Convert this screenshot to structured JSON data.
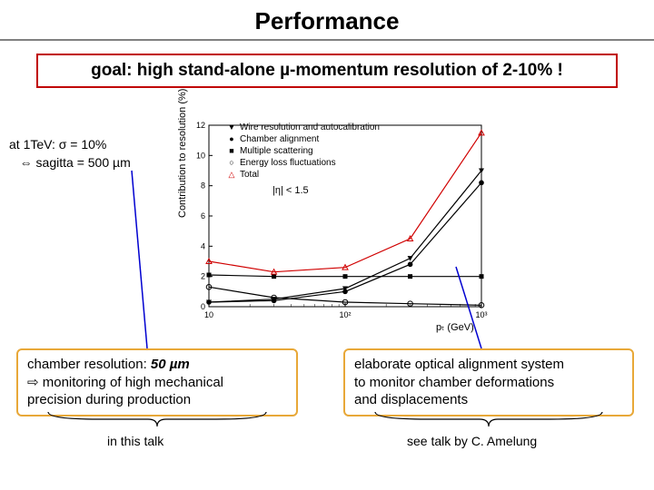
{
  "title": "Performance",
  "goal": {
    "text": "goal: high stand-alone µ-momentum resolution of 2-10% !",
    "border_color": "#c00000"
  },
  "annotation": {
    "line1": "at 1TeV: σ = 10%",
    "line2": "⇔ sagitta = 500 µm"
  },
  "chart": {
    "type": "line",
    "ylabel": "Contribution to resolution (%)",
    "xlabel": "pₜ (GeV)",
    "eta_label": "|η| < 1.5",
    "xlim": [
      10,
      1000
    ],
    "ylim": [
      0,
      12
    ],
    "xscale": "log",
    "ytick_step": 2,
    "xticks": [
      10,
      100,
      1000
    ],
    "xtick_labels": [
      "10",
      "10²",
      "10³"
    ],
    "grid_color": "#cccccc",
    "axis_color": "#000000",
    "legend": [
      {
        "marker": "▼",
        "label": "Wire resolution and autocalibration",
        "color": "#000000"
      },
      {
        "marker": "●",
        "label": "Chamber alignment",
        "color": "#000000"
      },
      {
        "marker": "■",
        "label": "Multiple scattering",
        "color": "#000000"
      },
      {
        "marker": "○",
        "label": "Energy loss fluctuations",
        "color": "#000000"
      },
      {
        "marker": "△",
        "label": "Total",
        "color": "#d00000"
      }
    ],
    "series": {
      "wire": {
        "color": "#000000",
        "marker": "▼",
        "x": [
          10,
          30,
          100,
          300,
          1000
        ],
        "y": [
          0.3,
          0.5,
          1.2,
          3.2,
          9.0
        ]
      },
      "chamber": {
        "color": "#000000",
        "marker": "●",
        "x": [
          10,
          30,
          100,
          300,
          1000
        ],
        "y": [
          0.3,
          0.4,
          1.0,
          2.8,
          8.2
        ]
      },
      "multiple": {
        "color": "#000000",
        "marker": "■",
        "x": [
          10,
          30,
          100,
          300,
          1000
        ],
        "y": [
          2.1,
          2.0,
          2.0,
          2.0,
          2.0
        ]
      },
      "energy": {
        "color": "#000000",
        "marker": "○",
        "x": [
          10,
          30,
          100,
          300,
          1000
        ],
        "y": [
          1.3,
          0.6,
          0.3,
          0.2,
          0.1
        ]
      },
      "total": {
        "color": "#d00000",
        "marker": "△",
        "x": [
          10,
          30,
          100,
          300,
          1000
        ],
        "y": [
          3.0,
          2.3,
          2.6,
          4.5,
          11.5
        ]
      }
    }
  },
  "callouts": {
    "left": {
      "line1_a": "chamber resolution: ",
      "line1_b": "50 µm",
      "line2": "⇨ monitoring of high mechanical",
      "line3": "    precision during production",
      "border_color": "#e8a838"
    },
    "right": {
      "line1": "elaborate optical alignment system",
      "line2": "to monitor chamber deformations",
      "line3": "and displacements",
      "border_color": "#e8a838"
    }
  },
  "connectors": {
    "left": {
      "color": "#0000d0"
    },
    "right": {
      "color": "#0000d0"
    }
  },
  "talk_refs": {
    "left": "in this talk",
    "right": "see talk by C. Amelung"
  },
  "brace_color": "#000000"
}
